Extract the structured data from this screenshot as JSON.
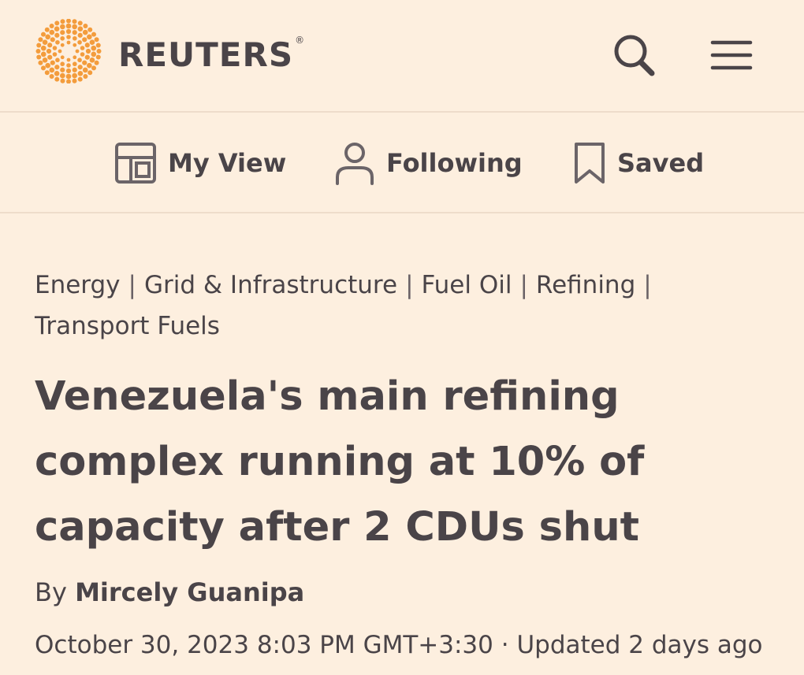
{
  "header": {
    "brand": "REUTERS",
    "registered": "®",
    "search_icon": "search-icon",
    "menu_icon": "hamburger-menu-icon",
    "accent_color": "#f39c3c"
  },
  "nav": {
    "items": [
      {
        "label": "My View",
        "icon": "layout-icon"
      },
      {
        "label": "Following",
        "icon": "person-icon"
      },
      {
        "label": "Saved",
        "icon": "bookmark-icon"
      }
    ]
  },
  "article": {
    "tags": [
      "Energy",
      "Grid & Infrastructure",
      "Fuel Oil",
      "Refining",
      "Transport Fuels"
    ],
    "separator": "|",
    "headline": "Venezuela's main refining complex running at 10% of capacity after 2 CDUs shut",
    "byline_prefix": "By",
    "author": "Mircely Guanipa",
    "date": "October 30, 2023 8:03 PM GMT+3:30",
    "dot": "·",
    "updated": "Updated 2 days ago"
  }
}
